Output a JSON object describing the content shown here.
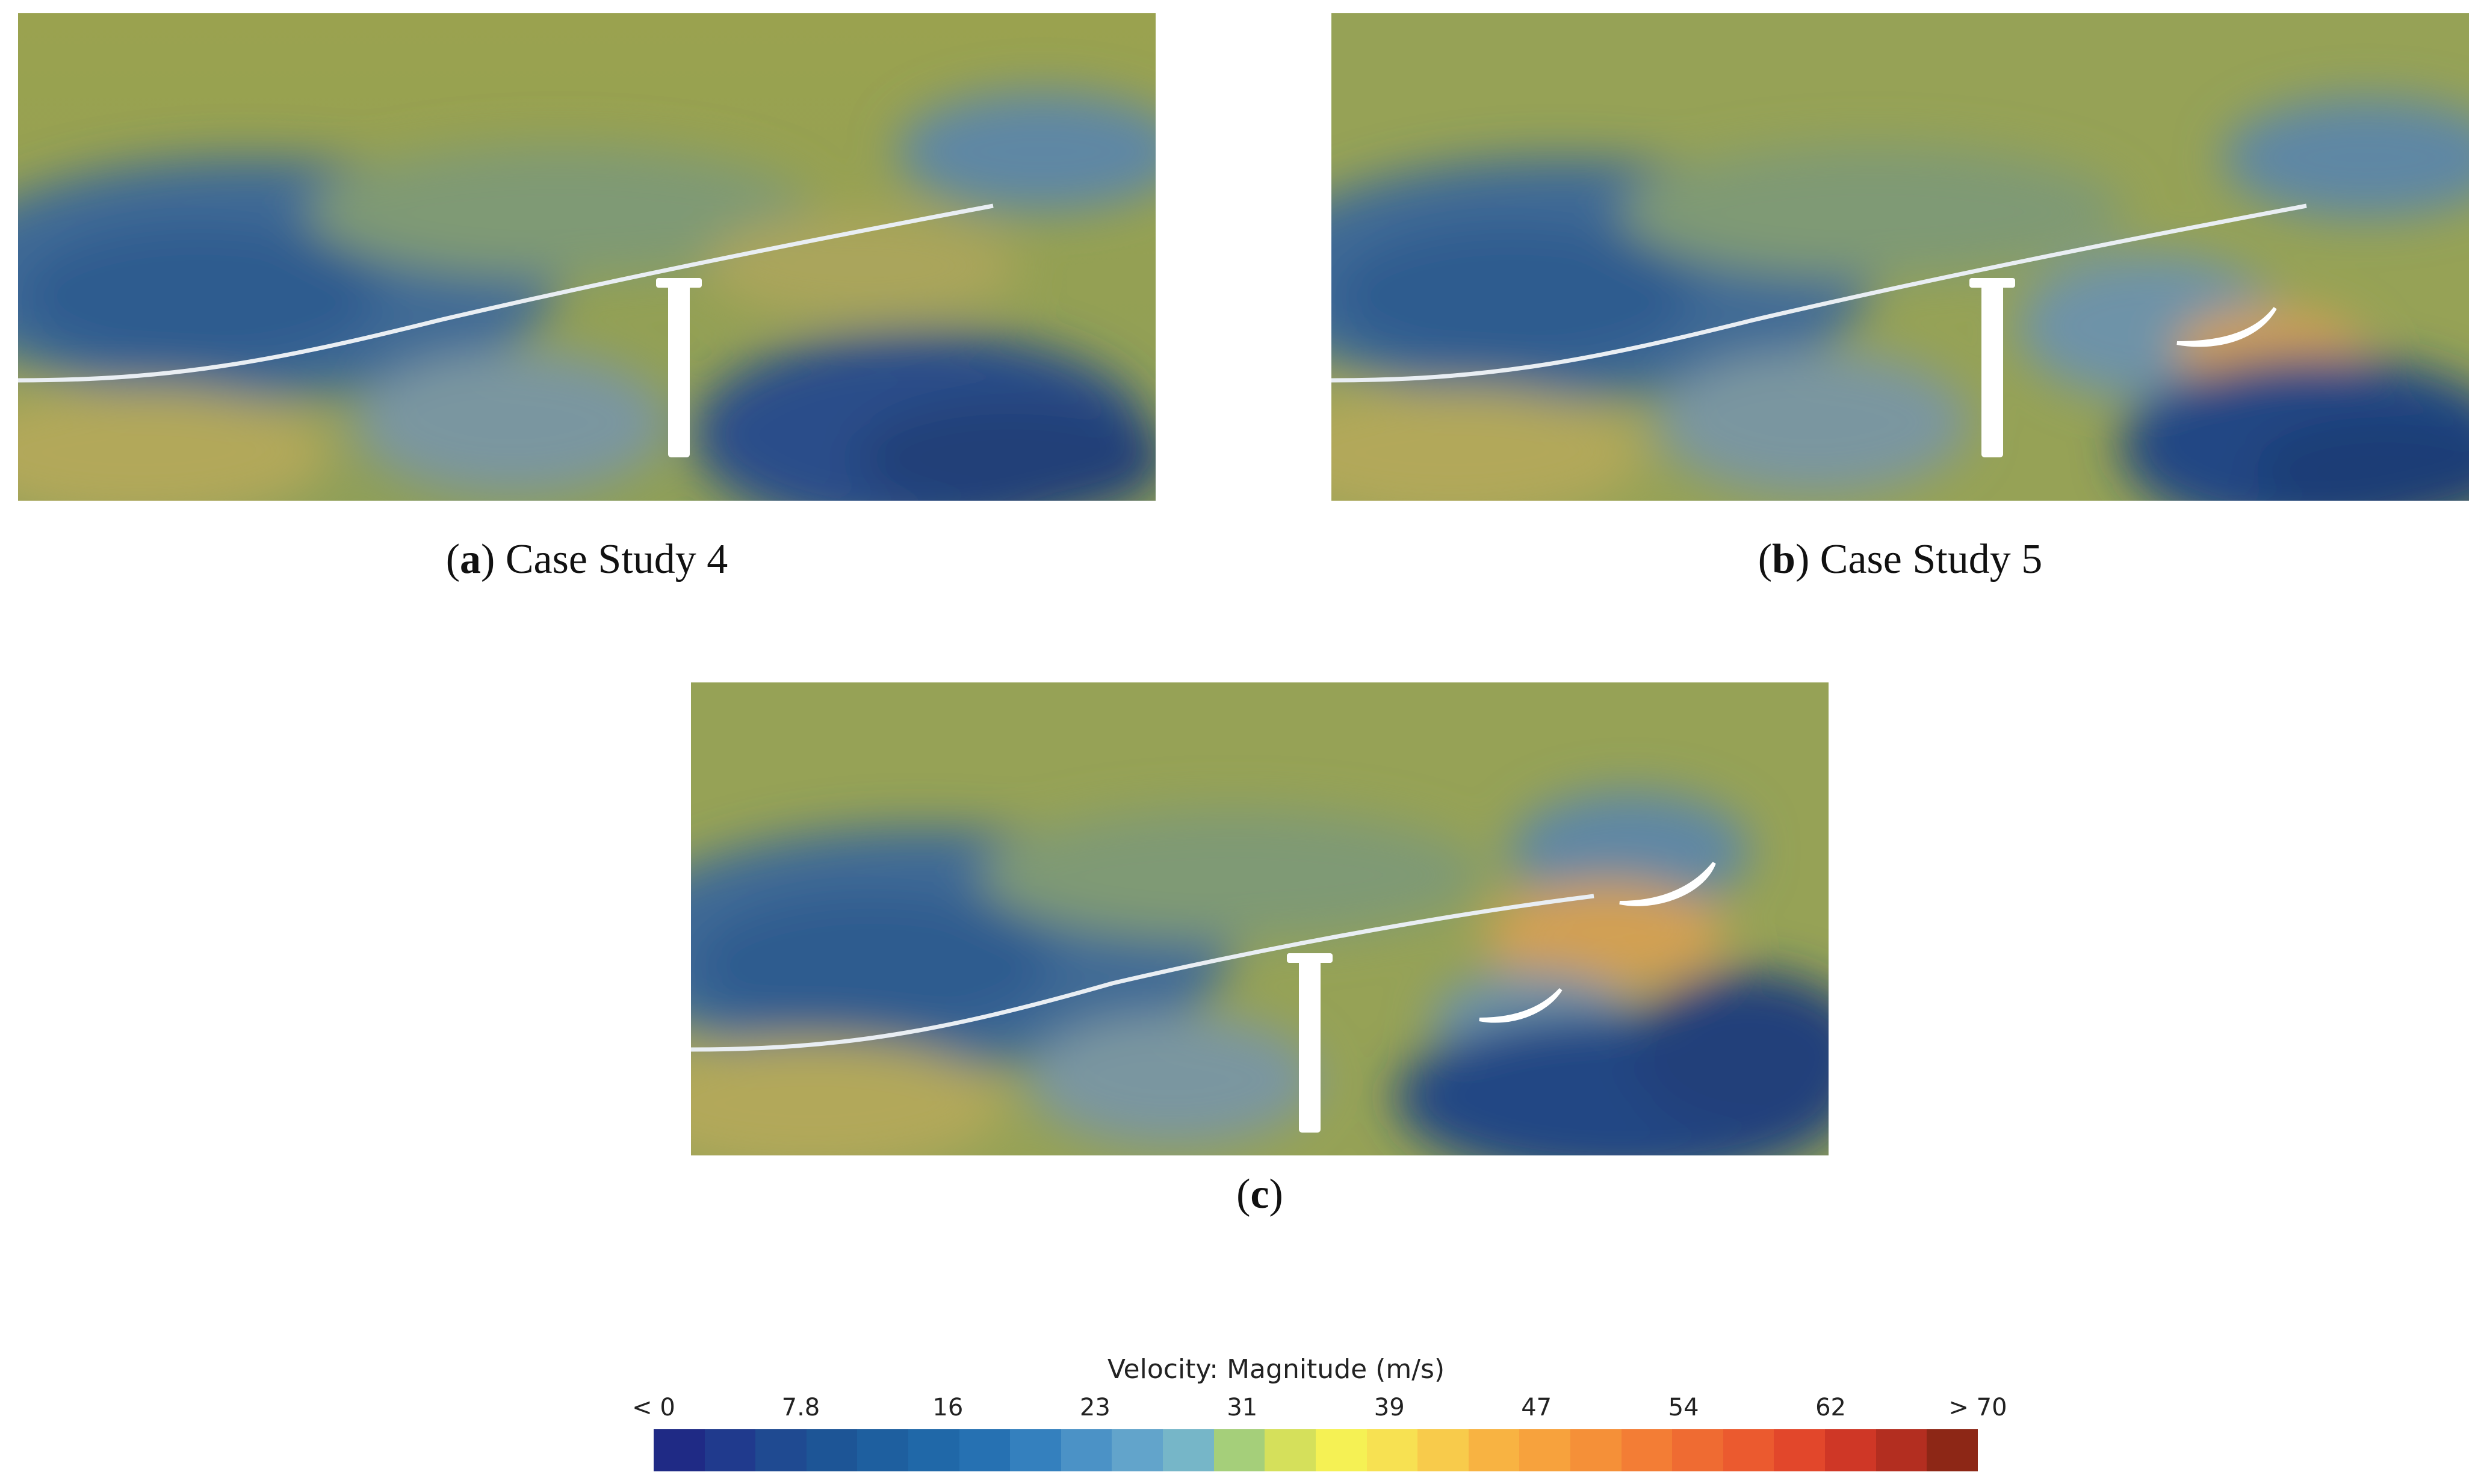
{
  "panels": [
    {
      "id": "a",
      "letter": "a",
      "label": "Case Study 4",
      "vanes": 0
    },
    {
      "id": "b",
      "letter": "b",
      "label": "Case Study 5",
      "vanes": 1
    },
    {
      "id": "c",
      "letter": "c",
      "label": "",
      "vanes": 2
    }
  ],
  "legend": {
    "title": "Velocity: Magnitude (m/s)",
    "ticks": [
      "< 0",
      "7.8",
      "16",
      "23",
      "31",
      "39",
      "47",
      "54",
      "62",
      "> 70"
    ],
    "colors": [
      "#1f2a85",
      "#203a8d",
      "#1f4a91",
      "#1d5596",
      "#1e5f9f",
      "#2068a8",
      "#2671b2",
      "#3480be",
      "#4b92c6",
      "#62a4cb",
      "#76b6c8",
      "#a5cf7a",
      "#d5e05b",
      "#f5f154",
      "#f7e152",
      "#f8cb4b",
      "#f8b342",
      "#f7a23d",
      "#f59038",
      "#f37d35",
      "#ef6b32",
      "#eb5a2f",
      "#e2472b",
      "#cf3726",
      "#b32e20",
      "#8d2716"
    ]
  },
  "colors": {
    "background_field": "#8ea25a",
    "low_velocity": "#2f5c8f",
    "high_velocity": "#d99a4e",
    "structure": "#ffffff"
  }
}
